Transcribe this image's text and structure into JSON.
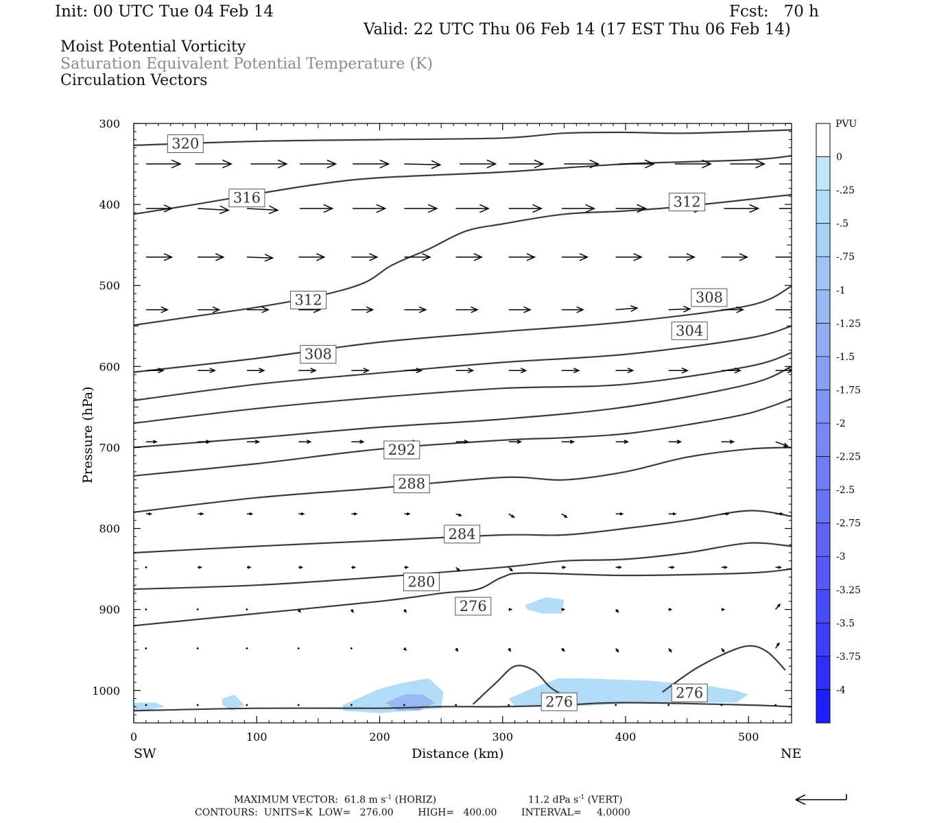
{
  "header": {
    "init": "Init: 00 UTC Tue 04 Feb 14",
    "fcst": "Fcst:   70 h",
    "valid": "Valid: 22 UTC Thu 06 Feb 14 (17 EST Thu 06 Feb 14)"
  },
  "titles": {
    "line1": "Moist Potential Vorticity",
    "line2": "Saturation Equivalent Potential Temperature (K)",
    "line3": "Circulation Vectors"
  },
  "footer": {
    "max_vector_prefix": "MAXIMUM VECTOR:  61.8 m s",
    "max_vector_horiz": "(HORIZ)",
    "max_vector_vert_prefix": "11.2 dPa s",
    "max_vector_vert": "(VERT)",
    "superscript": "-1",
    "contours": "CONTOURS:  UNITS=K  LOW=   276.00        HIGH=   400.00        INTERVAL=     4.0000"
  },
  "colors": {
    "contour": "#3a3a3a",
    "vector": "#000000",
    "axis": "#000000",
    "title_grey": "#8a8a8a"
  },
  "chart_data": {
    "type": "cross-section",
    "xlabel": "Distance (km)",
    "ylabel": "Pressure (hPa)",
    "xlim": [
      0,
      535
    ],
    "ylim": [
      1040,
      300
    ],
    "x_ticks": [
      0,
      100,
      200,
      300,
      400,
      500
    ],
    "y_ticks": [
      300,
      400,
      500,
      600,
      700,
      800,
      900,
      1000
    ],
    "x_end_labels": {
      "left": "SW",
      "right": "NE"
    },
    "colorbar": {
      "unit": "PVU",
      "labels": [
        "0",
        "-.25",
        "-.5",
        "-.75",
        "-1",
        "-1.25",
        "-1.5",
        "-1.75",
        "-2",
        "-2.25",
        "-2.5",
        "-2.75",
        "-3",
        "-3.25",
        "-3.5",
        "-3.75",
        "-4"
      ],
      "colors": [
        "#ffffff",
        "#bfe6fb",
        "#b3dcf8",
        "#a8d0f6",
        "#a0c4f5",
        "#98b8f4",
        "#90acf4",
        "#88a0f4",
        "#8094f4",
        "#7888f4",
        "#707cf4",
        "#6870f4",
        "#5f64f4",
        "#5558f5",
        "#4a4cf6",
        "#3e3ff8",
        "#2f2ffa",
        "#1f1ffc"
      ]
    },
    "contour_labels": [
      {
        "text": "320",
        "x": 42,
        "p": 325
      },
      {
        "text": "316",
        "x": 92,
        "p": 392
      },
      {
        "text": "312",
        "x": 450,
        "p": 397
      },
      {
        "text": "312",
        "x": 142,
        "p": 518
      },
      {
        "text": "308",
        "x": 468,
        "p": 515
      },
      {
        "text": "304",
        "x": 452,
        "p": 556
      },
      {
        "text": "308",
        "x": 150,
        "p": 585
      },
      {
        "text": "292",
        "x": 218,
        "p": 703
      },
      {
        "text": "288",
        "x": 226,
        "p": 745
      },
      {
        "text": "284",
        "x": 267,
        "p": 807
      },
      {
        "text": "280",
        "x": 234,
        "p": 866
      },
      {
        "text": "276",
        "x": 276,
        "p": 896
      },
      {
        "text": "276",
        "x": 452,
        "p": 1003
      },
      {
        "text": "276",
        "x": 346,
        "p": 1014
      }
    ],
    "contours": [
      {
        "x": [
          0,
          100,
          200,
          300,
          350,
          400,
          450,
          535
        ],
        "p": [
          327,
          322,
          320,
          318,
          312,
          311,
          312,
          308
        ]
      },
      {
        "x": [
          0,
          50,
          100,
          150,
          200,
          300,
          400,
          500,
          535
        ],
        "p": [
          412,
          400,
          387,
          375,
          367,
          360,
          350,
          345,
          340
        ]
      },
      {
        "x": [
          0,
          50,
          100,
          150,
          187,
          210,
          240,
          270,
          300,
          350,
          400,
          450,
          535
        ],
        "p": [
          549,
          538,
          527,
          513,
          497,
          475,
          455,
          433,
          424,
          412,
          408,
          402,
          388
        ]
      },
      {
        "x": [
          0,
          100,
          200,
          300,
          400,
          500,
          535
        ],
        "p": [
          607,
          590,
          570,
          557,
          545,
          525,
          501
        ]
      },
      {
        "x": [
          0,
          100,
          200,
          300,
          400,
          500,
          535
        ],
        "p": [
          642,
          622,
          608,
          595,
          585,
          565,
          550
        ]
      },
      {
        "x": [
          0,
          100,
          200,
          300,
          400,
          500,
          535
        ],
        "p": [
          670,
          652,
          638,
          627,
          622,
          600,
          583
        ]
      },
      {
        "x": [
          0,
          100,
          200,
          300,
          400,
          500,
          535
        ],
        "p": [
          700,
          688,
          675,
          665,
          650,
          622,
          600
        ]
      },
      {
        "x": [
          0,
          100,
          200,
          300,
          350,
          400,
          450,
          500,
          535
        ],
        "p": [
          735,
          720,
          702,
          691,
          688,
          683,
          672,
          658,
          640
        ]
      },
      {
        "x": [
          0,
          100,
          200,
          300,
          350,
          400,
          450,
          500,
          535
        ],
        "p": [
          780,
          762,
          750,
          737,
          740,
          730,
          712,
          702,
          700
        ]
      },
      {
        "x": [
          0,
          100,
          200,
          300,
          350,
          400,
          450,
          500,
          535
        ],
        "p": [
          830,
          822,
          815,
          808,
          808,
          800,
          790,
          778,
          785
        ]
      },
      {
        "x": [
          0,
          100,
          200,
          300,
          350,
          400,
          450,
          500,
          535
        ],
        "p": [
          875,
          870,
          860,
          848,
          840,
          838,
          830,
          818,
          822
        ]
      },
      {
        "x": [
          0,
          100,
          200,
          250,
          280,
          300,
          320,
          400,
          500,
          535
        ],
        "p": [
          920,
          905,
          890,
          880,
          875,
          860,
          855,
          858,
          855,
          850
        ]
      },
      {
        "x": [
          0,
          100,
          200,
          250,
          300,
          350,
          400,
          500,
          535
        ],
        "p": [
          1025,
          1022,
          1022,
          1020,
          1020,
          1018,
          1015,
          1018,
          1020
        ]
      },
      {
        "x": [
          276,
          295,
          310,
          325,
          338,
          346
        ],
        "p": [
          1017,
          990,
          970,
          975,
          995,
          1003
        ]
      },
      {
        "x": [
          430,
          455,
          480,
          500,
          515,
          530
        ],
        "p": [
          1002,
          975,
          955,
          945,
          952,
          975
        ]
      }
    ],
    "pv_shading": [
      {
        "level": "-.25",
        "x": [
          0,
          18,
          25,
          10,
          0
        ],
        "p": [
          1015,
          1015,
          1020,
          1025,
          1025
        ]
      },
      {
        "level": "-.25",
        "x": [
          72,
          82,
          90,
          80,
          72
        ],
        "p": [
          1010,
          1005,
          1018,
          1025,
          1018
        ]
      },
      {
        "level": "-.25",
        "x": [
          170,
          200,
          220,
          240,
          252,
          250,
          200,
          170
        ],
        "p": [
          1018,
          998,
          990,
          985,
          1002,
          1022,
          1028,
          1025
        ]
      },
      {
        "level": "-1",
        "x": [
          205,
          220,
          235,
          245,
          232,
          215
        ],
        "p": [
          1015,
          1005,
          1005,
          1015,
          1025,
          1025
        ]
      },
      {
        "level": "-.25",
        "x": [
          320,
          345,
          365,
          420,
          470,
          490,
          500,
          490,
          420,
          350,
          310,
          305,
          320
        ],
        "p": [
          1000,
          985,
          985,
          988,
          995,
          1000,
          1005,
          1015,
          1015,
          1020,
          1020,
          1010,
          1000
        ]
      },
      {
        "level": "-.25",
        "x": [
          318,
          335,
          350,
          348,
          332,
          320
        ],
        "p": [
          895,
          885,
          888,
          905,
          905,
          900
        ]
      }
    ],
    "vectors": {
      "note": "circulation vectors; x in km, p in hPa, u/v in plot-relative units",
      "rows": [
        {
          "p": 350,
          "x": [
            10,
            50,
            95,
            135,
            178,
            220,
            265,
            305,
            350,
            395,
            440,
            485,
            525
          ],
          "u": [
            40,
            42,
            42,
            42,
            42,
            42,
            42,
            40,
            40,
            40,
            42,
            40,
            35
          ],
          "v": [
            0,
            0,
            0,
            0,
            0,
            1,
            0,
            0,
            0,
            0,
            0,
            0,
            0
          ]
        },
        {
          "p": 405,
          "x": [
            10,
            52,
            92,
            135,
            178,
            220,
            262,
            305,
            348,
            392,
            435,
            480,
            525
          ],
          "u": [
            30,
            36,
            36,
            38,
            38,
            38,
            38,
            38,
            38,
            35,
            40,
            40,
            38
          ],
          "v": [
            0,
            2,
            2,
            0,
            0,
            0,
            0,
            0,
            0,
            0,
            0,
            0,
            0
          ]
        },
        {
          "p": 465,
          "x": [
            10,
            52,
            92,
            134,
            177,
            220,
            262,
            305,
            348,
            392,
            435,
            478,
            522
          ],
          "u": [
            30,
            30,
            30,
            30,
            30,
            30,
            30,
            30,
            30,
            30,
            30,
            30,
            30
          ],
          "v": [
            0,
            0,
            1,
            0,
            0,
            0,
            0,
            0,
            0,
            0,
            0,
            0,
            0
          ]
        },
        {
          "p": 530,
          "x": [
            10,
            52,
            92,
            134,
            177,
            220,
            262,
            305,
            348,
            392,
            435,
            478,
            522
          ],
          "u": [
            25,
            25,
            25,
            25,
            25,
            25,
            25,
            25,
            25,
            25,
            25,
            25,
            25
          ],
          "v": [
            0,
            0,
            0,
            0,
            0,
            0,
            0,
            0,
            0,
            -2,
            -1,
            0,
            0
          ]
        },
        {
          "p": 605,
          "x": [
            10,
            52,
            92,
            134,
            177,
            220,
            262,
            305,
            348,
            392,
            435,
            478,
            522
          ],
          "u": [
            20,
            20,
            20,
            20,
            20,
            20,
            20,
            20,
            20,
            20,
            22,
            22,
            20
          ],
          "v": [
            0,
            0,
            0,
            0,
            0,
            0,
            0,
            0,
            0,
            0,
            0,
            0,
            0
          ]
        },
        {
          "p": 693,
          "x": [
            10,
            52,
            92,
            134,
            177,
            220,
            262,
            305,
            348,
            392,
            435,
            478,
            522
          ],
          "u": [
            12,
            14,
            14,
            14,
            14,
            14,
            14,
            14,
            14,
            14,
            14,
            14,
            14
          ],
          "v": [
            0,
            0,
            0,
            0,
            0,
            0,
            0,
            0,
            0,
            0,
            0,
            0,
            5
          ]
        },
        {
          "p": 782,
          "x": [
            10,
            52,
            92,
            134,
            177,
            220,
            262,
            305,
            348,
            392,
            435,
            478,
            522
          ],
          "u": [
            6,
            6,
            6,
            6,
            6,
            6,
            6,
            6,
            6,
            8,
            8,
            8,
            8
          ],
          "v": [
            0,
            0,
            0,
            0,
            0,
            0,
            2,
            4,
            4,
            0,
            0,
            0,
            0
          ]
        },
        {
          "p": 848,
          "x": [
            10,
            52,
            92,
            134,
            177,
            220,
            262,
            305,
            348,
            392,
            435,
            478,
            522
          ],
          "u": [
            2,
            4,
            4,
            4,
            4,
            4,
            4,
            4,
            4,
            6,
            6,
            6,
            6
          ],
          "v": [
            0,
            0,
            0,
            0,
            0,
            0,
            4,
            4,
            0,
            0,
            0,
            0,
            0
          ]
        },
        {
          "p": 900,
          "x": [
            10,
            52,
            92,
            134,
            177,
            220,
            262,
            305,
            348,
            392,
            435,
            478,
            522
          ],
          "u": [
            1,
            1,
            1,
            2,
            2,
            2,
            3,
            3,
            3,
            3,
            3,
            3,
            5
          ],
          "v": [
            0,
            0,
            2,
            3,
            3,
            3,
            3,
            0,
            0,
            3,
            0,
            0,
            -6
          ]
        },
        {
          "p": 948,
          "x": [
            10,
            52,
            92,
            134,
            177,
            220,
            262,
            305,
            348,
            392,
            435,
            478,
            522
          ],
          "u": [
            1,
            1,
            1,
            1,
            1,
            2,
            2,
            2,
            3,
            3,
            3,
            3,
            4
          ],
          "v": [
            0,
            0,
            1,
            2,
            2,
            2,
            3,
            3,
            3,
            4,
            4,
            4,
            -6
          ]
        },
        {
          "p": 1018,
          "x": [
            10,
            52,
            92,
            134,
            177,
            220,
            262,
            305,
            348,
            392,
            435,
            478,
            522
          ],
          "u": [
            1,
            1,
            1,
            1,
            1,
            1,
            1,
            1,
            1,
            1,
            1,
            1,
            1
          ],
          "v": [
            0,
            0,
            0,
            0,
            0,
            0,
            0,
            0,
            0,
            0,
            0,
            0,
            0
          ]
        }
      ]
    }
  }
}
